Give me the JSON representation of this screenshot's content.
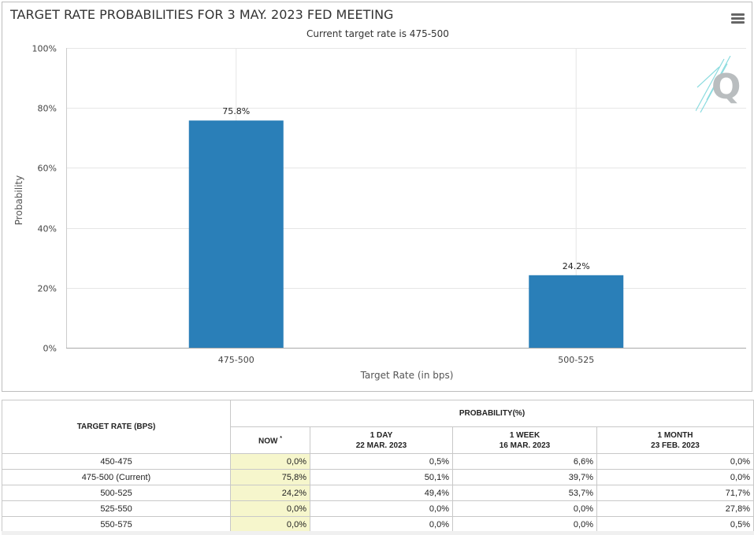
{
  "header": {
    "title": "TARGET RATE PROBABILITIES FOR 3 MAY. 2023 FED MEETING",
    "subtitle": "Current target rate is 475-500"
  },
  "chart_data": {
    "type": "bar",
    "title": "TARGET RATE PROBABILITIES FOR 3 MAY. 2023 FED MEETING",
    "subtitle": "Current target rate is 475-500",
    "categories": [
      "475-500",
      "500-525"
    ],
    "values": [
      75.8,
      24.2
    ],
    "data_labels": [
      "75.8%",
      "24.2%"
    ],
    "xlabel": "Target Rate (in bps)",
    "ylabel": "Probability",
    "ylim": [
      0,
      100
    ],
    "yticks": [
      "0%",
      "20%",
      "40%",
      "60%",
      "80%",
      "100%"
    ],
    "grid": true,
    "bar_color": "#2a7fb8"
  },
  "table": {
    "rate_header": "TARGET RATE (BPS)",
    "prob_header": "PROBABILITY(%)",
    "columns": [
      {
        "label": "NOW",
        "marker": "*",
        "date": ""
      },
      {
        "label": "1 DAY",
        "date": "22 MAR. 2023"
      },
      {
        "label": "1 WEEK",
        "date": "16 MAR. 2023"
      },
      {
        "label": "1 MONTH",
        "date": "23 FEB. 2023"
      }
    ],
    "rows": [
      {
        "rate": "450-475",
        "values": [
          "0,0%",
          "0,5%",
          "6,6%",
          "0,0%"
        ]
      },
      {
        "rate": "475-500 (Current)",
        "values": [
          "75,8%",
          "50,1%",
          "39,7%",
          "0,0%"
        ]
      },
      {
        "rate": "500-525",
        "values": [
          "24,2%",
          "49,4%",
          "53,7%",
          "71,7%"
        ]
      },
      {
        "rate": "525-550",
        "values": [
          "0,0%",
          "0,0%",
          "0,0%",
          "27,8%"
        ]
      },
      {
        "rate": "550-575",
        "values": [
          "0,0%",
          "0,0%",
          "0,0%",
          "0,5%"
        ]
      }
    ]
  }
}
